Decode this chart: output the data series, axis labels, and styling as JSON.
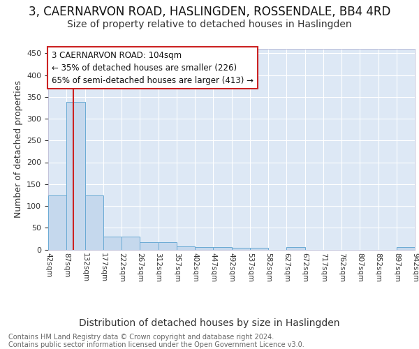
{
  "title": "3, CAERNARVON ROAD, HASLINGDEN, ROSSENDALE, BB4 4RD",
  "subtitle": "Size of property relative to detached houses in Haslingden",
  "xlabel": "Distribution of detached houses by size in Haslingden",
  "ylabel": "Number of detached properties",
  "footer1": "Contains HM Land Registry data © Crown copyright and database right 2024.",
  "footer2": "Contains public sector information licensed under the Open Government Licence v3.0.",
  "bin_edges": [
    42,
    87,
    132,
    177,
    222,
    267,
    312,
    357,
    402,
    447,
    492,
    537,
    582,
    627,
    672,
    717,
    762,
    807,
    852,
    897,
    942
  ],
  "bar_heights": [
    124,
    338,
    124,
    30,
    29,
    17,
    17,
    8,
    6,
    6,
    4,
    4,
    0,
    5,
    0,
    0,
    0,
    0,
    0,
    5
  ],
  "bar_color": "#c5d8ed",
  "bar_edge_color": "#6aaad4",
  "red_line_x": 104,
  "annotation_line1": "3 CAERNARVON ROAD: 104sqm",
  "annotation_line2": "← 35% of detached houses are smaller (226)",
  "annotation_line3": "65% of semi-detached houses are larger (413) →",
  "annotation_box_color": "#ffffff",
  "annotation_box_edge_color": "#cc2222",
  "ylim": [
    0,
    460
  ],
  "yticks": [
    0,
    50,
    100,
    150,
    200,
    250,
    300,
    350,
    400,
    450
  ],
  "background_color": "#dde8f5",
  "grid_color": "#ffffff",
  "fig_background": "#ffffff",
  "title_fontsize": 12,
  "subtitle_fontsize": 10,
  "ylabel_fontsize": 9,
  "xlabel_fontsize": 10,
  "footer_fontsize": 7
}
